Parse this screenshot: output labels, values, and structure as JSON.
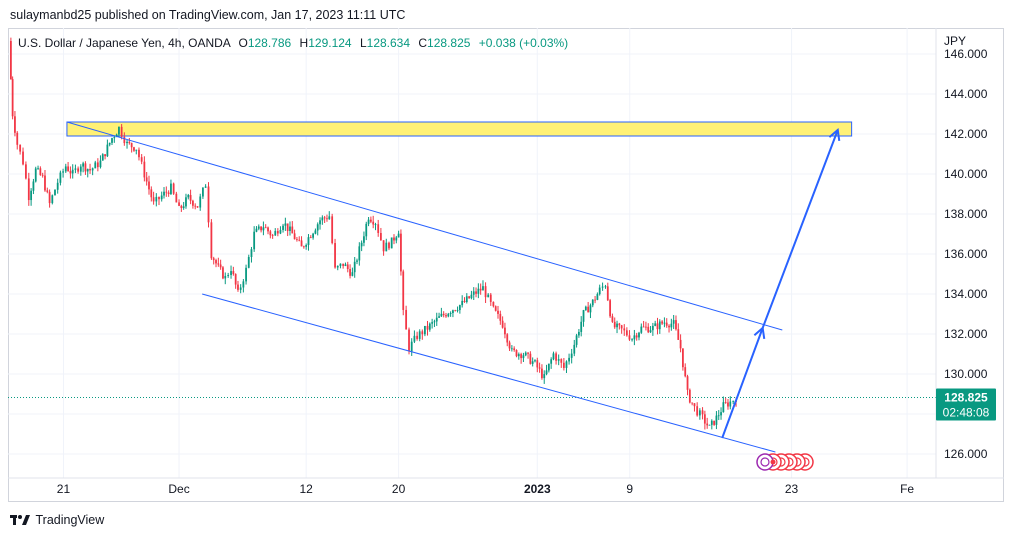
{
  "header": {
    "publisher": "sulaymanbd25 published on TradingView.com, Jan 17, 2023 11:11 UTC"
  },
  "legend": {
    "symbol": "U.S. Dollar / Japanese Yen, 4h, OANDA",
    "open_label": "O",
    "open": "128.786",
    "high_label": "H",
    "high": "129.124",
    "low_label": "L",
    "low": "128.634",
    "close_label": "C",
    "close": "128.825",
    "change": "+0.038 (+0.03%)"
  },
  "currency": "JPY",
  "price_tag": {
    "price": "128.825",
    "countdown": "02:48:08"
  },
  "footer": {
    "brand": "TradingView",
    "logo_icon": "tradingview-logo-icon"
  },
  "colors": {
    "up": "#089981",
    "down": "#f23645",
    "drawing": "#2962ff",
    "zone_fill": "#fff176",
    "tag": "#089981"
  },
  "chart_data": {
    "type": "candlestick",
    "interval": "4h",
    "y_axis": {
      "ticks": [
        126,
        128,
        130,
        132,
        134,
        136,
        138,
        140,
        142,
        144,
        146
      ],
      "range": [
        124.8,
        147.3
      ],
      "position": "right"
    },
    "x_axis": {
      "labels": [
        "21",
        "Dec",
        "12",
        "20",
        "2023",
        "9",
        "23",
        "Fe"
      ],
      "label_days": [
        21,
        31,
        42,
        50,
        62,
        70,
        84,
        94
      ],
      "range": [
        16.2,
        96.5
      ]
    },
    "last_price": 128.825,
    "close_series": [
      {
        "day": 16.3,
        "close": 146.5
      },
      {
        "day": 16.6,
        "close": 143.0
      },
      {
        "day": 17.0,
        "close": 141.5
      },
      {
        "day": 17.5,
        "close": 140.6
      },
      {
        "day": 18.0,
        "close": 138.9
      },
      {
        "day": 18.6,
        "close": 140.2
      },
      {
        "day": 19.2,
        "close": 139.8
      },
      {
        "day": 19.8,
        "close": 138.5
      },
      {
        "day": 20.5,
        "close": 139.6
      },
      {
        "day": 21.2,
        "close": 140.4
      },
      {
        "day": 21.8,
        "close": 140.0
      },
      {
        "day": 22.5,
        "close": 140.5
      },
      {
        "day": 23.3,
        "close": 140.2
      },
      {
        "day": 24.2,
        "close": 140.6
      },
      {
        "day": 25.2,
        "close": 141.8
      },
      {
        "day": 25.8,
        "close": 142.3
      },
      {
        "day": 26.5,
        "close": 141.5
      },
      {
        "day": 27.3,
        "close": 141.3
      },
      {
        "day": 28.0,
        "close": 140.0
      },
      {
        "day": 28.8,
        "close": 138.5
      },
      {
        "day": 29.5,
        "close": 138.9
      },
      {
        "day": 30.3,
        "close": 139.3
      },
      {
        "day": 31.0,
        "close": 138.2
      },
      {
        "day": 31.8,
        "close": 138.8
      },
      {
        "day": 32.6,
        "close": 138.4
      },
      {
        "day": 33.3,
        "close": 139.5
      },
      {
        "day": 33.8,
        "close": 136.0
      },
      {
        "day": 34.4,
        "close": 135.3
      },
      {
        "day": 35.0,
        "close": 134.8
      },
      {
        "day": 35.5,
        "close": 135.3
      },
      {
        "day": 36.1,
        "close": 134.0
      },
      {
        "day": 36.8,
        "close": 135.2
      },
      {
        "day": 37.5,
        "close": 137.0
      },
      {
        "day": 38.3,
        "close": 137.4
      },
      {
        "day": 39.1,
        "close": 136.9
      },
      {
        "day": 40.0,
        "close": 137.6
      },
      {
        "day": 40.8,
        "close": 137.0
      },
      {
        "day": 41.6,
        "close": 136.3
      },
      {
        "day": 42.4,
        "close": 137.0
      },
      {
        "day": 43.2,
        "close": 137.7
      },
      {
        "day": 44.0,
        "close": 137.9
      },
      {
        "day": 44.5,
        "close": 135.2
      },
      {
        "day": 45.2,
        "close": 135.5
      },
      {
        "day": 46.0,
        "close": 135.0
      },
      {
        "day": 46.8,
        "close": 136.6
      },
      {
        "day": 47.4,
        "close": 137.9
      },
      {
        "day": 48.0,
        "close": 137.6
      },
      {
        "day": 48.7,
        "close": 136.3
      },
      {
        "day": 49.4,
        "close": 136.6
      },
      {
        "day": 50.0,
        "close": 137.2
      },
      {
        "day": 50.4,
        "close": 133.0
      },
      {
        "day": 50.9,
        "close": 131.3
      },
      {
        "day": 51.6,
        "close": 131.9
      },
      {
        "day": 52.5,
        "close": 132.3
      },
      {
        "day": 53.5,
        "close": 132.8
      },
      {
        "day": 54.5,
        "close": 133.2
      },
      {
        "day": 55.5,
        "close": 133.5
      },
      {
        "day": 56.5,
        "close": 134.0
      },
      {
        "day": 57.3,
        "close": 134.3
      },
      {
        "day": 58.2,
        "close": 133.2
      },
      {
        "day": 59.0,
        "close": 132.5
      },
      {
        "day": 59.8,
        "close": 131.1
      },
      {
        "day": 60.8,
        "close": 131.0
      },
      {
        "day": 61.8,
        "close": 130.5
      },
      {
        "day": 62.6,
        "close": 129.8
      },
      {
        "day": 63.4,
        "close": 131.0
      },
      {
        "day": 64.3,
        "close": 130.3
      },
      {
        "day": 65.2,
        "close": 131.5
      },
      {
        "day": 66.0,
        "close": 133.0
      },
      {
        "day": 66.8,
        "close": 133.6
      },
      {
        "day": 67.4,
        "close": 134.2
      },
      {
        "day": 67.9,
        "close": 134.5
      },
      {
        "day": 68.5,
        "close": 132.4
      },
      {
        "day": 69.3,
        "close": 132.2
      },
      {
        "day": 70.2,
        "close": 131.8
      },
      {
        "day": 71.0,
        "close": 132.3
      },
      {
        "day": 72.0,
        "close": 132.3
      },
      {
        "day": 73.0,
        "close": 132.6
      },
      {
        "day": 73.8,
        "close": 132.5
      },
      {
        "day": 74.4,
        "close": 131.3
      },
      {
        "day": 75.0,
        "close": 129.0
      },
      {
        "day": 75.6,
        "close": 128.3
      },
      {
        "day": 76.3,
        "close": 127.8
      },
      {
        "day": 76.9,
        "close": 127.3
      },
      {
        "day": 77.5,
        "close": 127.8
      },
      {
        "day": 78.1,
        "close": 128.4
      },
      {
        "day": 78.7,
        "close": 128.6
      },
      {
        "day": 79.2,
        "close": 128.825
      }
    ],
    "drawings": {
      "channel_upper": [
        [
          21.3,
          142.6
        ],
        [
          83.2,
          132.2
        ]
      ],
      "channel_lower": [
        [
          33.0,
          134.0
        ],
        [
          82.6,
          126.1
        ]
      ],
      "resistance_zone": {
        "day_start": 21.3,
        "day_end": 89.2,
        "price_low": 141.9,
        "price_high": 142.6
      },
      "projection_path": [
        [
          78.0,
          126.8
        ],
        [
          81.5,
          132.3
        ],
        [
          88.0,
          142.2
        ]
      ]
    },
    "grid": "on"
  }
}
